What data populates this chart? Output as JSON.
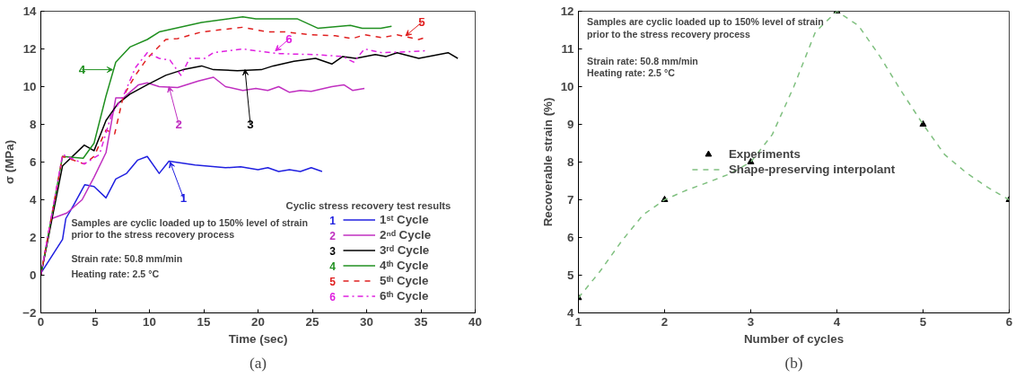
{
  "chart_data": [
    {
      "type": "line",
      "title": "(a)",
      "xlabel": "Time (sec)",
      "ylabel": "σ (MPa)",
      "legend_title": "Cyclic stress recovery test results",
      "legend": "bottom right",
      "grid": false,
      "xlim": [
        0,
        40
      ],
      "ylim": [
        -2,
        14
      ],
      "xticks": [
        0,
        5,
        10,
        15,
        20,
        25,
        30,
        35,
        40
      ],
      "yticks": [
        -2,
        0,
        2,
        4,
        6,
        8,
        10,
        12,
        14
      ],
      "series": [
        {
          "name": "1ˢᵗ Cycle",
          "color": "#2020e0",
          "line_style": "solid",
          "x": [
            0,
            2,
            2.3,
            3,
            4.05,
            4.9,
            6,
            6.9,
            7.9,
            8.9,
            9.8,
            10.9,
            11.8,
            14.2,
            17,
            18.4,
            20,
            20.9,
            21.9,
            22.9,
            23.9,
            24.9,
            25.9
          ],
          "values": [
            0.1,
            1.9,
            3,
            3.7,
            4.8,
            4.7,
            4.1,
            5.1,
            5.4,
            6.1,
            6.3,
            5.4,
            6.05,
            5.85,
            5.7,
            5.75,
            5.6,
            5.7,
            5.5,
            5.6,
            5.5,
            5.7,
            5.5
          ]
        },
        {
          "name": "2ⁿᵈ Cycle",
          "color": "#c030c0",
          "line_style": "solid",
          "x": [
            0,
            1,
            2.4,
            3.8,
            4.9,
            6,
            6.9,
            7.6,
            9,
            9.8,
            10.9,
            12.6,
            14.5,
            15.9,
            17,
            18.6,
            19.8,
            20.9,
            21.9,
            22.9,
            23.9,
            24.9,
            26.8,
            27.9,
            28.7,
            29.8
          ],
          "values": [
            0,
            3,
            3.3,
            4,
            5.2,
            6.5,
            9.4,
            9.4,
            10.1,
            10.2,
            10,
            9.95,
            10.3,
            10.5,
            10,
            9.8,
            9.9,
            9.8,
            10,
            9.7,
            9.8,
            9.75,
            10,
            10.1,
            9.8,
            9.9
          ]
        },
        {
          "name": "3ʳᵈ Cycle",
          "color": "#000000",
          "line_style": "solid",
          "x": [
            0,
            2,
            4,
            4.9,
            6,
            7.1,
            8.2,
            9.8,
            11.5,
            13.1,
            14.8,
            15.9,
            18.1,
            20.3,
            21.4,
            23.3,
            25.3,
            26.8,
            27.8,
            29,
            30.8,
            31.8,
            32.8,
            34.8,
            37.5,
            38.4
          ],
          "values": [
            0,
            5.8,
            6.9,
            6.6,
            8.2,
            9.1,
            9.6,
            10.1,
            10.6,
            10.9,
            11.1,
            10.9,
            10.85,
            10.9,
            11.1,
            11.35,
            11.5,
            11.2,
            11.6,
            11.5,
            11.7,
            11.6,
            11.8,
            11.5,
            11.8,
            11.5
          ]
        },
        {
          "name": "4ᵗʰ Cycle",
          "color": "#209020",
          "line_style": "solid",
          "x": [
            0,
            2,
            3.9,
            4.9,
            6,
            6.9,
            8.2,
            9.8,
            10.9,
            14.8,
            18.6,
            19.8,
            23.6,
            25.5,
            28.5,
            29.6,
            31.3,
            32.3
          ],
          "values": [
            0,
            6.3,
            6.2,
            7,
            9.5,
            11.3,
            12.1,
            12.5,
            12.9,
            13.4,
            13.7,
            13.6,
            13.6,
            13.1,
            13.25,
            13.1,
            13.1,
            13.2
          ]
        },
        {
          "name": "5ᵗʰ Cycle",
          "color": "#e02020",
          "line_style": "dashed",
          "x": [
            0,
            2,
            4,
            4.9,
            6,
            6.8,
            7.6,
            8.7,
            9.8,
            11.5,
            12.6,
            14.8,
            18.6,
            20.9,
            22.5,
            24.9,
            27.1,
            28.7,
            29.8,
            31.4,
            32.8,
            34.8,
            35.4
          ],
          "values": [
            0,
            6.3,
            5.9,
            6.3,
            7.7,
            7.5,
            9.5,
            10.6,
            11.5,
            12.5,
            12.55,
            12.9,
            13.15,
            12.9,
            12.9,
            12.75,
            12.7,
            12.55,
            12.75,
            12.6,
            12.75,
            12.5,
            12.6
          ]
        },
        {
          "name": "6ᵗʰ Cycle",
          "color": "#e020e0",
          "line_style": "dashdot",
          "x": [
            0,
            2,
            4,
            5.4,
            6.5,
            7.6,
            8.7,
            9.8,
            10.9,
            11.9,
            12.9,
            13.7,
            15.1,
            15.9,
            18.6,
            19.75,
            22,
            25.3,
            27.8,
            28.8,
            29.8,
            31.4,
            33.6,
            35.4
          ],
          "values": [
            0,
            6.4,
            5.9,
            6.4,
            8.5,
            9.5,
            11,
            11.8,
            11.5,
            11.4,
            10.6,
            11.5,
            11.5,
            11.8,
            12,
            11.9,
            11.75,
            11.7,
            11.6,
            11.3,
            12,
            11.8,
            11.85,
            11.9
          ]
        }
      ],
      "annotations": [
        {
          "text": "1",
          "x": 11.9,
          "y": 6.0
        },
        {
          "text": "2",
          "x": 11.8,
          "y": 10.0
        },
        {
          "text": "3",
          "x": 18.8,
          "y": 10.9
        },
        {
          "text": "4",
          "x": 6.6,
          "y": 10.9
        },
        {
          "text": "5",
          "x": 33.6,
          "y": 12.7
        },
        {
          "text": "6",
          "x": 21.6,
          "y": 11.9
        },
        "Samples are cyclic loaded up to 150% level of strain",
        "prior to the stress recovery process",
        "Strain rate: 50.8 mm/min",
        "Heating rate: 2.5 °C"
      ]
    },
    {
      "type": "scatter",
      "title": "(b)",
      "xlabel": "Number of cycles",
      "ylabel": "Recoverable strain (%)",
      "legend": "center",
      "grid": false,
      "xlim": [
        1,
        6
      ],
      "ylim": [
        4,
        12
      ],
      "xticks": [
        1,
        2,
        3,
        4,
        5,
        6
      ],
      "yticks": [
        4,
        5,
        6,
        7,
        8,
        9,
        10,
        11,
        12
      ],
      "series": [
        {
          "name": "Experiments",
          "type": "scatter",
          "marker": "triangle",
          "color": "#000000",
          "x": [
            1,
            2,
            3,
            4,
            5,
            6
          ],
          "values": [
            4.4,
            7,
            8,
            12,
            9,
            7
          ]
        },
        {
          "name": "Shape-preserving interpolant",
          "type": "line",
          "line_style": "dashed",
          "color": "#80c080",
          "x": [
            1,
            1.25,
            1.5,
            1.75,
            2,
            2.25,
            2.5,
            2.75,
            3,
            3.25,
            3.5,
            3.75,
            4,
            4.25,
            4.5,
            4.75,
            5,
            5.25,
            5.5,
            5.75,
            6
          ],
          "values": [
            4.4,
            5.1,
            5.9,
            6.6,
            7.0,
            7.25,
            7.46,
            7.68,
            8.0,
            8.73,
            10.0,
            11.45,
            12.0,
            11.62,
            10.8,
            9.87,
            9.0,
            8.2,
            7.72,
            7.33,
            7.0
          ]
        }
      ],
      "annotations": [
        "Samples are cyclic loaded up to 150% level of strain",
        "prior to the stress recovery process",
        "Strain rate: 50.8 mm/min",
        "Heating rate: 2.5 °C"
      ]
    }
  ]
}
